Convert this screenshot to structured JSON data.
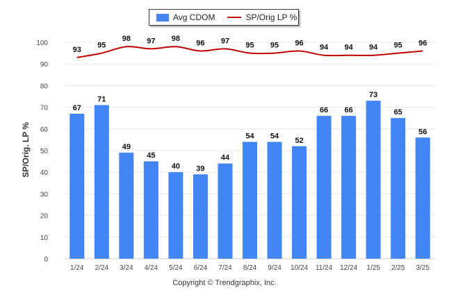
{
  "chart_data": {
    "type": "bar",
    "categories": [
      "1/24",
      "2/24",
      "3/24",
      "4/24",
      "5/24",
      "6/24",
      "7/24",
      "8/24",
      "9/24",
      "10/24",
      "11/24",
      "12/24",
      "1/25",
      "2/25",
      "3/25"
    ],
    "series": [
      {
        "name": "Avg CDOM",
        "type": "bar",
        "color": "#4285f4",
        "values": [
          67,
          71,
          49,
          45,
          40,
          39,
          44,
          54,
          54,
          52,
          66,
          66,
          73,
          65,
          56
        ]
      },
      {
        "name": "SP/Orig LP %",
        "type": "line",
        "color": "#c00000",
        "values": [
          93,
          95,
          98,
          97,
          98,
          96,
          97,
          95,
          95,
          96,
          94,
          94,
          94,
          95,
          96
        ]
      }
    ],
    "ylabel": "SP/Orig. LP %",
    "ylim": [
      0,
      100
    ],
    "yticks": [
      0,
      10,
      20,
      30,
      40,
      50,
      60,
      70,
      80,
      90,
      100
    ],
    "grid": true,
    "legend": "top-center",
    "copyright": "Copyright © Trendgraphix, Inc."
  }
}
